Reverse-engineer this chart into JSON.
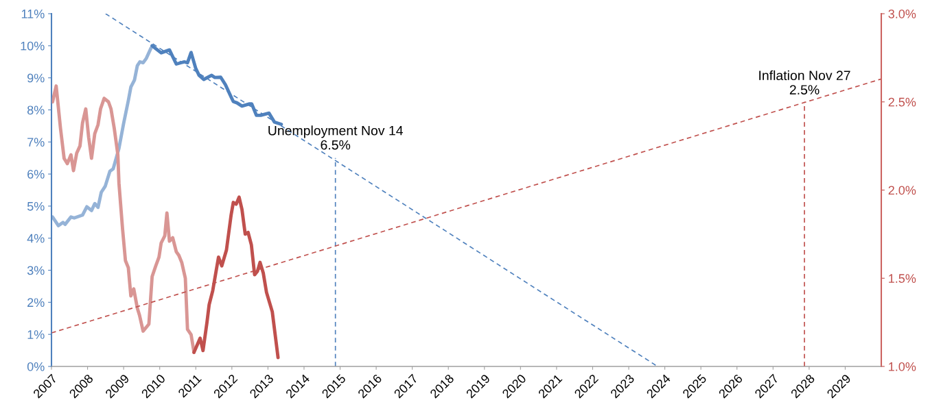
{
  "chart_data": {
    "type": "line",
    "xlim": [
      2007,
      2030
    ],
    "xticks": [
      2007,
      2008,
      2009,
      2010,
      2011,
      2012,
      2013,
      2014,
      2015,
      2016,
      2017,
      2018,
      2019,
      2020,
      2021,
      2022,
      2023,
      2024,
      2025,
      2026,
      2027,
      2028,
      2029
    ],
    "ylim": [
      0,
      11
    ],
    "yticks": [
      {
        "value": 0,
        "label": "0%"
      },
      {
        "value": 1,
        "label": "1%"
      },
      {
        "value": 2,
        "label": "2%"
      },
      {
        "value": 3,
        "label": "3%"
      },
      {
        "value": 4,
        "label": "4%"
      },
      {
        "value": 5,
        "label": "5%"
      },
      {
        "value": 6,
        "label": "6%"
      },
      {
        "value": 7,
        "label": "7%"
      },
      {
        "value": 8,
        "label": "8%"
      },
      {
        "value": 9,
        "label": "9%"
      },
      {
        "value": 10,
        "label": "10%"
      },
      {
        "value": 11,
        "label": "11%"
      }
    ],
    "y2lim": [
      1.0,
      3.0
    ],
    "y2ticks": [
      {
        "value": 1.0,
        "label": "1.0%"
      },
      {
        "value": 1.5,
        "label": "1.5%"
      },
      {
        "value": 2.0,
        "label": "2.0%"
      },
      {
        "value": 2.5,
        "label": "2.5%"
      },
      {
        "value": 3.0,
        "label": "3.0%"
      }
    ],
    "grid": false,
    "legend": false,
    "marker": "none",
    "series": [
      {
        "color": "#95b3d7",
        "line_style": "solid",
        "x": [
          2007.03,
          2007.19,
          2007.32,
          2007.38,
          2007.54,
          2007.63,
          2007.86,
          2007.98,
          2008.11,
          2008.2,
          2008.29,
          2008.38,
          2008.49,
          2008.62,
          2008.71,
          2008.87,
          2009.0,
          2009.13,
          2009.2,
          2009.3,
          2009.38,
          2009.45,
          2009.54,
          2009.63,
          2009.76
        ],
        "values": [
          4.66,
          4.39,
          4.49,
          4.43,
          4.66,
          4.63,
          4.72,
          4.98,
          4.86,
          5.08,
          4.96,
          5.43,
          5.62,
          6.09,
          6.16,
          6.8,
          7.58,
          8.29,
          8.71,
          8.93,
          9.38,
          9.5,
          9.47,
          9.61,
          9.93
        ]
      },
      {
        "color": "#4f81bd",
        "line_style": "solid",
        "x": [
          2009.79,
          2010.04,
          2010.27,
          2010.46,
          2010.68,
          2010.77,
          2010.87,
          2011.0,
          2011.09,
          2011.22,
          2011.44,
          2011.53,
          2011.69,
          2011.82,
          2011.98,
          2012.04,
          2012.14,
          2012.28,
          2012.49,
          2012.55,
          2012.68,
          2012.8,
          2013.03,
          2013.18,
          2013.37
        ],
        "values": [
          10.0,
          9.78,
          9.87,
          9.43,
          9.5,
          9.47,
          9.79,
          9.29,
          9.08,
          8.95,
          9.08,
          9.01,
          9.02,
          8.79,
          8.4,
          8.26,
          8.22,
          8.12,
          8.19,
          8.19,
          7.83,
          7.83,
          7.9,
          7.62,
          7.55
        ]
      },
      {
        "color": "#d99694",
        "line_style": "solid",
        "axis": "y2",
        "x": [
          2007.03,
          2007.13,
          2007.25,
          2007.35,
          2007.44,
          2007.54,
          2007.61,
          2007.7,
          2007.79,
          2007.86,
          2007.95,
          2008.03,
          2008.11,
          2008.2,
          2008.29,
          2008.36,
          2008.46,
          2008.58,
          2008.65,
          2008.74,
          2008.84,
          2008.87,
          2008.97,
          2009.05,
          2009.13,
          2009.2,
          2009.28,
          2009.38,
          2009.44,
          2009.54,
          2009.7,
          2009.79,
          2009.89,
          2009.98,
          2010.04,
          2010.14,
          2010.2,
          2010.27,
          2010.36,
          2010.46,
          2010.53,
          2010.61,
          2010.71,
          2010.77,
          2010.87,
          2010.95
        ],
        "values": [
          2.5,
          2.59,
          2.35,
          2.18,
          2.15,
          2.2,
          2.11,
          2.21,
          2.25,
          2.38,
          2.46,
          2.3,
          2.18,
          2.32,
          2.37,
          2.46,
          2.52,
          2.5,
          2.46,
          2.35,
          2.2,
          2.04,
          1.78,
          1.6,
          1.56,
          1.4,
          1.44,
          1.33,
          1.29,
          1.2,
          1.24,
          1.51,
          1.57,
          1.62,
          1.7,
          1.74,
          1.87,
          1.71,
          1.73,
          1.65,
          1.63,
          1.59,
          1.5,
          1.21,
          1.18,
          1.08
        ]
      },
      {
        "color": "#c0504d",
        "line_style": "solid",
        "axis": "y2",
        "x": [
          2010.95,
          2011.12,
          2011.2,
          2011.31,
          2011.37,
          2011.47,
          2011.63,
          2011.72,
          2011.85,
          2011.98,
          2012.04,
          2012.12,
          2012.2,
          2012.28,
          2012.37,
          2012.45,
          2012.54,
          2012.63,
          2012.71,
          2012.78,
          2012.87,
          2012.96,
          2013.12,
          2013.28
        ],
        "values": [
          1.08,
          1.16,
          1.09,
          1.25,
          1.35,
          1.43,
          1.62,
          1.57,
          1.66,
          1.86,
          1.93,
          1.92,
          1.96,
          1.89,
          1.75,
          1.76,
          1.69,
          1.52,
          1.54,
          1.59,
          1.53,
          1.42,
          1.31,
          1.05
        ]
      },
      {
        "color": "#4f81bd",
        "line_style": "dashed",
        "x": [
          2008.5,
          2023.8
        ],
        "values": [
          11.0,
          0.0
        ]
      },
      {
        "color": "#c0504d",
        "line_style": "dashed",
        "axis": "y2",
        "x": [
          2007,
          2030
        ],
        "values": [
          1.19,
          2.63
        ]
      },
      {
        "color": "#4f81bd",
        "line_style": "dashed",
        "x": [
          2014.87,
          2014.87
        ],
        "values": [
          0.0,
          6.5
        ]
      },
      {
        "color": "#c0504d",
        "line_style": "dashed",
        "axis": "y2",
        "x": [
          2027.87,
          2027.87
        ],
        "values": [
          1.0,
          2.5
        ]
      }
    ],
    "annotations": [
      {
        "text": "Unemployment Nov 14\n6.5%",
        "x": 2014.87,
        "y": 6.5
      },
      {
        "text": "Inflation Nov 27\n2.5%",
        "x": 2027.87,
        "y": 8.22
      }
    ]
  }
}
